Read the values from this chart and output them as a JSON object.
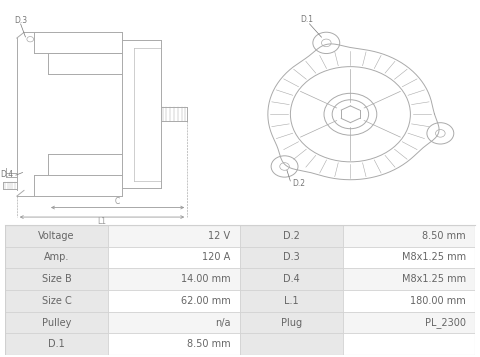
{
  "bg_color": "#ffffff",
  "table_bg_label": "#e8e8e8",
  "table_bg_value_even": "#f5f5f5",
  "table_bg_value_odd": "#ffffff",
  "table_border_color": "#d0d0d0",
  "table_text_color": "#666666",
  "left_rows": [
    [
      "Voltage",
      "12 V"
    ],
    [
      "Amp.",
      "120 A"
    ],
    [
      "Size B",
      "14.00 mm"
    ],
    [
      "Size C",
      "62.00 mm"
    ],
    [
      "Pulley",
      "n/a"
    ],
    [
      "D.1",
      "8.50 mm"
    ]
  ],
  "right_rows": [
    [
      "D.2",
      "8.50 mm"
    ],
    [
      "D.3",
      "M8x1.25 mm"
    ],
    [
      "D.4",
      "M8x1.25 mm"
    ],
    [
      "L.1",
      "180.00 mm"
    ],
    [
      "Plug",
      "PL_2300"
    ],
    [
      "",
      ""
    ]
  ],
  "font_size_table": 7.0,
  "line_color": "#aaaaaa",
  "dim_color": "#999999",
  "label_color": "#777777"
}
